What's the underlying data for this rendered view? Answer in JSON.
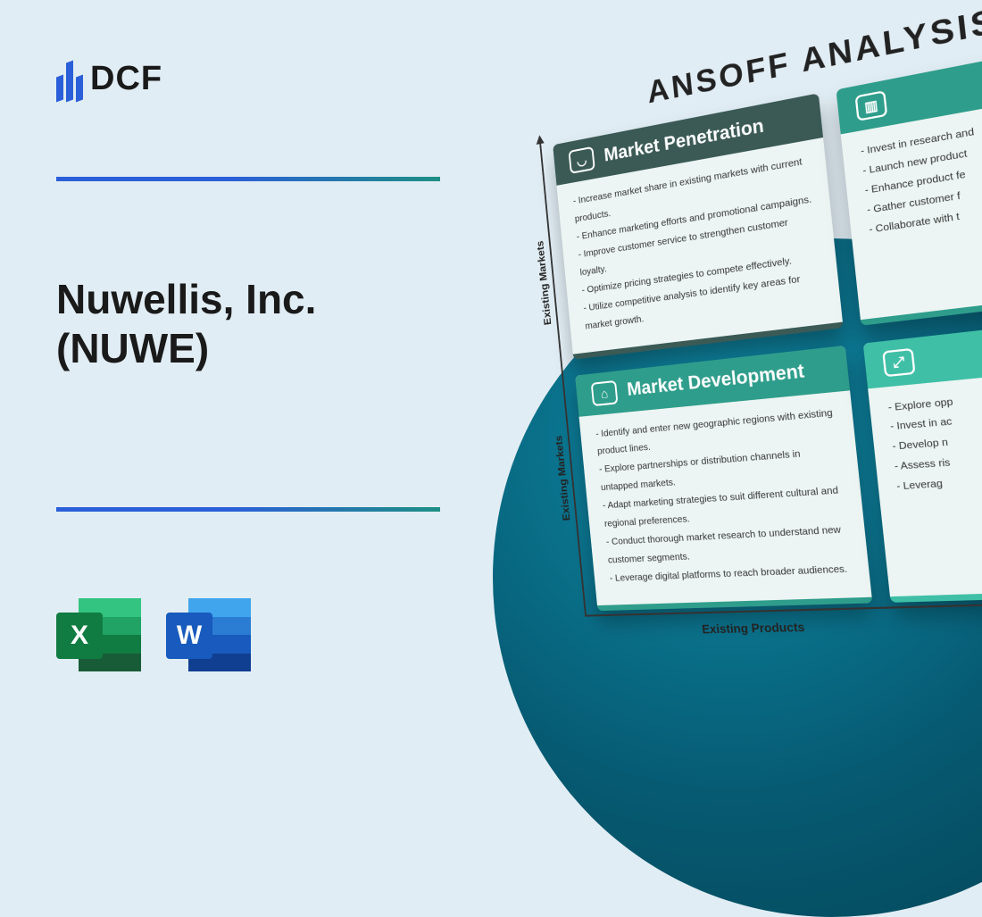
{
  "logo": {
    "text": "DCF"
  },
  "title": "Nuwellis, Inc. (NUWE)",
  "colors": {
    "page_bg": "#e1edf4",
    "accent_gradient_from": "#2b5fd9",
    "accent_gradient_to": "#1d8f84",
    "circle_inner": "#0e8aa6",
    "circle_outer": "#044354"
  },
  "ansoff": {
    "heading": "ANSOFF ANALYSIS",
    "y_axis_label": "Existing Markets",
    "x_axis_label": "Existing Products",
    "cards": {
      "market_penetration": {
        "title": "Market Penetration",
        "header_color": "#3b5a56",
        "items": [
          "Increase market share in existing markets with current products.",
          "Enhance marketing efforts and promotional campaigns.",
          "Improve customer service to strengthen customer loyalty.",
          "Optimize pricing strategies to compete effectively.",
          "Utilize competitive analysis to identify key areas for market growth."
        ]
      },
      "product_development": {
        "title": "",
        "header_color": "#2f9d8b",
        "items": [
          "Invest in research and",
          "Launch new product",
          "Enhance product fe",
          "Gather customer f",
          "Collaborate with t"
        ]
      },
      "market_development": {
        "title": "Market Development",
        "header_color": "#2f9d8b",
        "items": [
          "Identify and enter new geographic regions with existing product lines.",
          "Explore partnerships or distribution channels in untapped markets.",
          "Adapt marketing strategies to suit different cultural and regional preferences.",
          "Conduct thorough market research to understand new customer segments.",
          "Leverage digital platforms to reach broader audiences."
        ]
      },
      "diversification": {
        "title": "",
        "header_color": "#3fbfa6",
        "items": [
          "Explore opp",
          "Invest in ac",
          "Develop n",
          "Assess ris",
          "Leverag"
        ]
      }
    }
  },
  "file_icons": {
    "excel": "X",
    "word": "W"
  }
}
